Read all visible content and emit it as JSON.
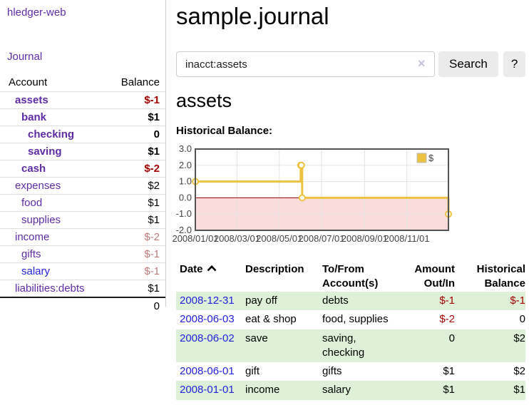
{
  "colors": {
    "link_purple": "#5e2ca5",
    "link_blue": "#2222dd",
    "negative_dark": "#a40000",
    "negative_soft": "#bf7b7b",
    "row_stripe_green": "#dff0d8",
    "chart_series_yellow": "#edc240",
    "chart_negative_fill": "#fadcdc",
    "chart_zero_line": "#990000",
    "chart_border": "#545454",
    "chart_grid": "#e3e3e3"
  },
  "icons": {
    "sort": "chevron-up-icon",
    "clear_search": "x-icon"
  },
  "sidebar": {
    "brand": "hledger-web",
    "journal_link": "Journal",
    "accounts": {
      "header": {
        "account": "Account",
        "balance": "Balance"
      },
      "rows": [
        {
          "name": "assets",
          "balance": "$-1",
          "level": 1,
          "bold": true
        },
        {
          "name": "bank",
          "balance": "$1",
          "level": 2,
          "bold": true
        },
        {
          "name": "checking",
          "balance": "0",
          "level": 3,
          "bold": true
        },
        {
          "name": "saving",
          "balance": "$1",
          "level": 3,
          "bold": true
        },
        {
          "name": "cash",
          "balance": "$-2",
          "level": 2,
          "bold": true
        },
        {
          "name": "expenses",
          "balance": "$2",
          "level": 1,
          "bold": false
        },
        {
          "name": "food",
          "balance": "$1",
          "level": 2,
          "bold": false
        },
        {
          "name": "supplies",
          "balance": "$1",
          "level": 2,
          "bold": false
        },
        {
          "name": "income",
          "balance": "$-2",
          "level": 1,
          "bold": false
        },
        {
          "name": "gifts",
          "balance": "$-1",
          "level": 2,
          "bold": false
        },
        {
          "name": "salary",
          "balance": "$-1",
          "level": 2,
          "bold": false,
          "blue": true
        },
        {
          "name": "liabilities:debts",
          "balance": "$1",
          "level": 1,
          "bold": false
        }
      ],
      "total": "0"
    }
  },
  "main": {
    "title": "sample.journal",
    "search": {
      "query": "inacct:assets",
      "clear_icon": "×",
      "button": "Search",
      "help_button": "?"
    },
    "account_heading": "assets",
    "chart_title": "Historical Balance:",
    "register": {
      "headers": {
        "date": "Date",
        "description": "Description",
        "accounts": "To/From Account(s)",
        "amount": "Amount Out/In",
        "balance": "Historical Balance"
      },
      "rows": [
        {
          "date": "2008-12-31",
          "description": "pay off",
          "accounts": "debts",
          "amount": "$-1",
          "balance": "$-1"
        },
        {
          "date": "2008-06-03",
          "description": "eat & shop",
          "accounts": "food, supplies",
          "amount": "$-2",
          "balance": "0"
        },
        {
          "date": "2008-06-02",
          "description": "save",
          "accounts": "saving, checking",
          "amount": "0",
          "balance": "$2"
        },
        {
          "date": "2008-06-01",
          "description": "gift",
          "accounts": "gifts",
          "amount": "$1",
          "balance": "$2"
        },
        {
          "date": "2008-01-01",
          "description": "income",
          "accounts": "salary",
          "amount": "$1",
          "balance": "$1"
        }
      ]
    }
  },
  "chart_data": {
    "type": "line",
    "step": true,
    "title": "Historical Balance",
    "series": [
      {
        "name": "$",
        "color": "#edc240",
        "points": [
          [
            "2008-01-01",
            1
          ],
          [
            "2008-06-01",
            2
          ],
          [
            "2008-06-02",
            2
          ],
          [
            "2008-06-03",
            0
          ],
          [
            "2008-12-31",
            -1
          ]
        ]
      }
    ],
    "x_range": [
      "2008-01-01",
      "2008-12-31"
    ],
    "x_tick_labels": [
      "2008/01/01",
      "2008/03/01",
      "2008/05/01",
      "2008/07/01",
      "2008/09/01",
      "2008/11/01"
    ],
    "y_ticks": [
      3.0,
      2.0,
      1.0,
      0.0,
      -1.0,
      -2.0
    ],
    "ylim": [
      -2,
      3
    ],
    "grid": true,
    "legend_position": "top-right",
    "negative_region_shaded": true
  }
}
